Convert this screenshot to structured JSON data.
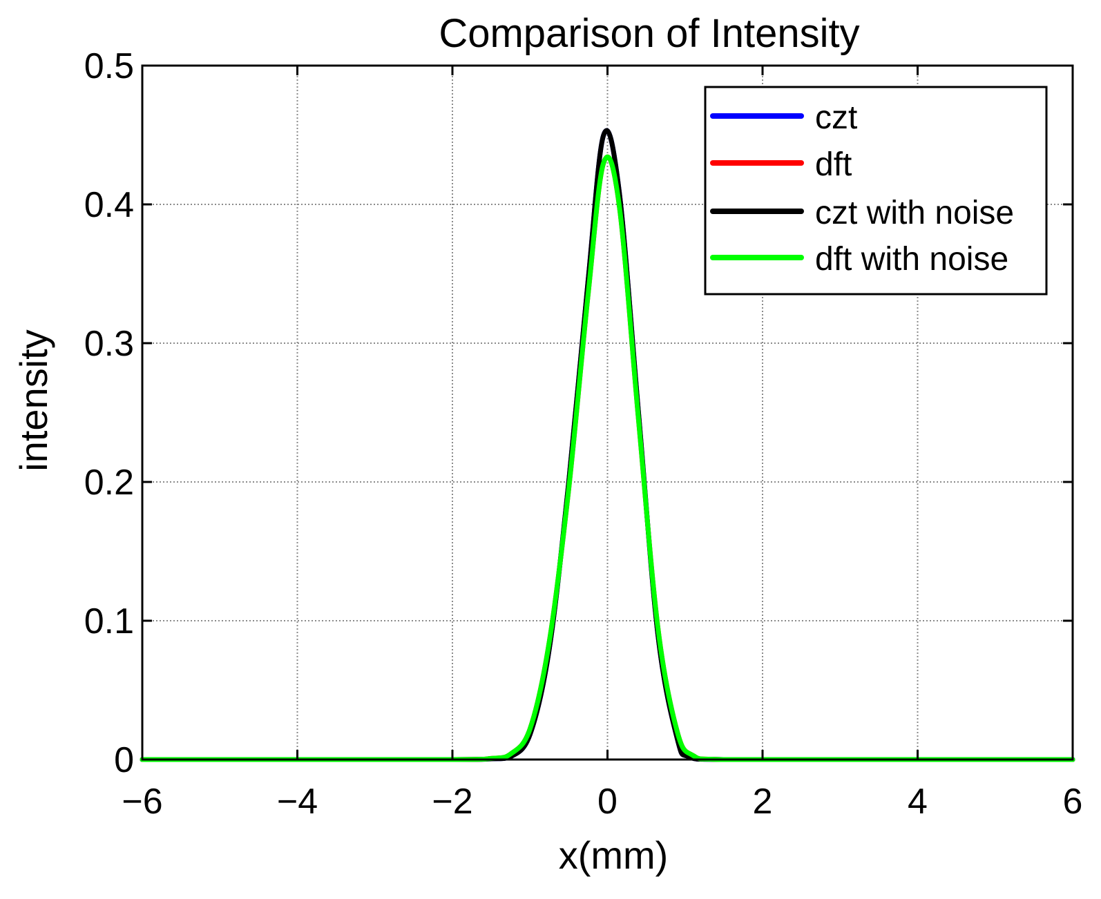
{
  "chart_data": {
    "type": "line",
    "title": "Comparison of Intensity",
    "xlabel": "x(mm)",
    "ylabel": "intensity",
    "xlim": [
      -6,
      6
    ],
    "ylim": [
      0,
      0.5
    ],
    "xticks": [
      -6,
      -4,
      -2,
      0,
      2,
      4,
      6
    ],
    "xtick_labels": [
      "−6",
      "−4",
      "−2",
      "0",
      "2",
      "4",
      "6"
    ],
    "yticks": [
      0,
      0.1,
      0.2,
      0.3,
      0.4,
      0.5
    ],
    "ytick_labels": [
      "0",
      "0.1",
      "0.2",
      "0.3",
      "0.4",
      "0.5"
    ],
    "grid": true,
    "legend_position": "top-right",
    "series": [
      {
        "name": "czt",
        "color": "#0000ff",
        "x": [
          -6,
          -2,
          -1.5,
          -1.25,
          -1.0,
          -0.75,
          -0.5,
          -0.25,
          -0.05,
          0.15,
          0.4,
          0.65,
          0.9,
          1.05,
          1.5,
          6
        ],
        "y": [
          0,
          0,
          0.0005,
          0.002,
          0.018,
          0.08,
          0.2,
          0.345,
          0.45,
          0.41,
          0.25,
          0.09,
          0.015,
          0.002,
          0,
          0
        ]
      },
      {
        "name": "dft",
        "color": "#ff0000",
        "x": [
          -6,
          -2,
          -1.5,
          -1.25,
          -1.0,
          -0.75,
          -0.5,
          -0.25,
          -0.05,
          0.15,
          0.4,
          0.65,
          0.9,
          1.1,
          1.5,
          6
        ],
        "y": [
          0,
          0,
          0.0008,
          0.004,
          0.022,
          0.085,
          0.195,
          0.335,
          0.43,
          0.4,
          0.245,
          0.095,
          0.02,
          0.003,
          0,
          0
        ]
      },
      {
        "name": "czt with noise",
        "color": "#000000",
        "x": [
          -6,
          -2,
          -1.5,
          -1.25,
          -1.0,
          -0.75,
          -0.5,
          -0.25,
          -0.05,
          0.15,
          0.4,
          0.65,
          0.9,
          1.05,
          1.5,
          6
        ],
        "y": [
          0,
          0,
          0.0005,
          0.002,
          0.018,
          0.08,
          0.2,
          0.345,
          0.45,
          0.41,
          0.25,
          0.09,
          0.015,
          0.002,
          0,
          0
        ]
      },
      {
        "name": "dft with noise",
        "color": "#00ff00",
        "x": [
          -6,
          -2,
          -1.5,
          -1.25,
          -1.0,
          -0.75,
          -0.5,
          -0.25,
          -0.05,
          0.15,
          0.4,
          0.65,
          0.9,
          1.1,
          1.5,
          6
        ],
        "y": [
          0,
          0,
          0.0008,
          0.004,
          0.022,
          0.085,
          0.195,
          0.335,
          0.43,
          0.4,
          0.245,
          0.095,
          0.02,
          0.003,
          0,
          0
        ]
      }
    ]
  }
}
